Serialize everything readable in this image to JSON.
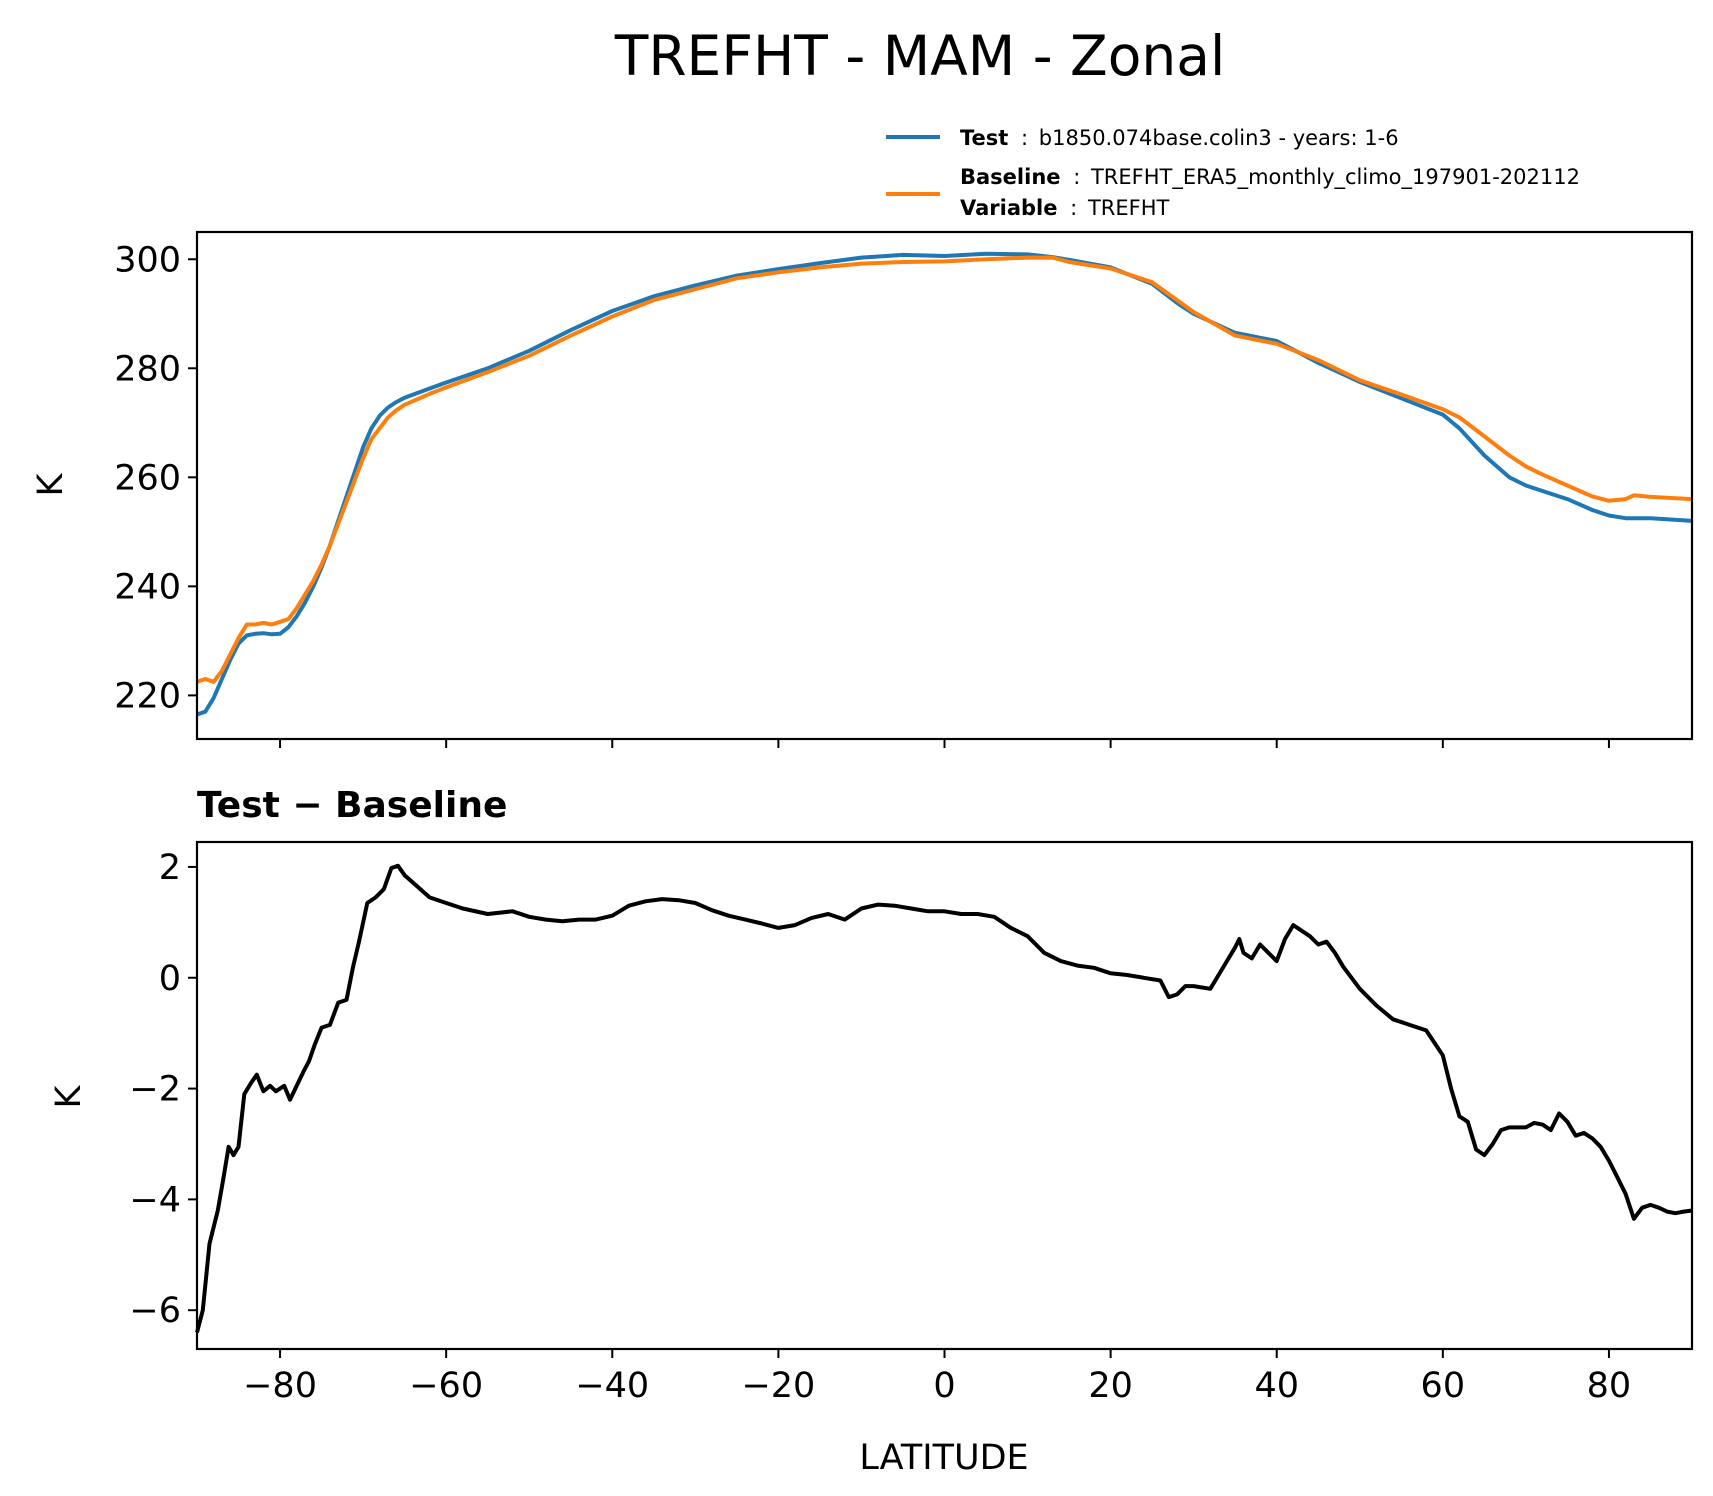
{
  "title": "TREFHT - MAM - Zonal",
  "legend": {
    "test": {
      "label": "Test",
      "value": "b1850.074base.colin3 - years: 1-6"
    },
    "baseline": {
      "label": "Baseline",
      "value": "TREFHT_ERA5_monthly_climo_197901-202112"
    },
    "variable": {
      "label": "Variable",
      "value": "TREFHT"
    },
    "separator": ":"
  },
  "colors": {
    "test": "#1f77b4",
    "baseline": "#ff7f0e",
    "diff": "#000000"
  },
  "chart_data": [
    {
      "type": "line",
      "title": "",
      "xlabel": "",
      "ylabel": "K",
      "xlim": [
        -90,
        90
      ],
      "ylim": [
        212,
        305
      ],
      "yticks": [
        220,
        240,
        260,
        280,
        300
      ],
      "xticks": [
        -80,
        -60,
        -40,
        -20,
        0,
        20,
        40,
        60,
        80
      ],
      "series": [
        {
          "name": "Test",
          "color": "#1f77b4",
          "points": [
            [
              -90,
              216.5
            ],
            [
              -89,
              217
            ],
            [
              -88,
              219.5
            ],
            [
              -87,
              223
            ],
            [
              -86,
              226.5
            ],
            [
              -85,
              229.5
            ],
            [
              -84,
              231
            ],
            [
              -83,
              231.3
            ],
            [
              -82,
              231.4
            ],
            [
              -81,
              231.2
            ],
            [
              -80,
              231.3
            ],
            [
              -79,
              232.5
            ],
            [
              -78,
              234.5
            ],
            [
              -77,
              237
            ],
            [
              -76,
              240
            ],
            [
              -75,
              243.5
            ],
            [
              -74,
              247.5
            ],
            [
              -73,
              252
            ],
            [
              -72,
              256.5
            ],
            [
              -71,
              261
            ],
            [
              -70,
              265.5
            ],
            [
              -69,
              269
            ],
            [
              -68,
              271.3
            ],
            [
              -67,
              272.8
            ],
            [
              -66,
              273.8
            ],
            [
              -65,
              274.6
            ],
            [
              -62,
              276.3
            ],
            [
              -60,
              277.4
            ],
            [
              -55,
              280
            ],
            [
              -50,
              283.2
            ],
            [
              -45,
              287
            ],
            [
              -40,
              290.5
            ],
            [
              -35,
              293.2
            ],
            [
              -30,
              295.2
            ],
            [
              -25,
              297
            ],
            [
              -20,
              298.2
            ],
            [
              -15,
              299.3
            ],
            [
              -10,
              300.3
            ],
            [
              -5,
              300.8
            ],
            [
              0,
              300.6
            ],
            [
              5,
              301
            ],
            [
              10,
              300.9
            ],
            [
              13,
              300.4
            ],
            [
              15,
              299.9
            ],
            [
              20,
              298.5
            ],
            [
              25,
              295.5
            ],
            [
              28,
              292
            ],
            [
              30,
              290
            ],
            [
              35,
              286.5
            ],
            [
              40,
              285
            ],
            [
              45,
              281
            ],
            [
              50,
              277.5
            ],
            [
              55,
              274.5
            ],
            [
              60,
              271.5
            ],
            [
              62,
              269
            ],
            [
              65,
              264
            ],
            [
              68,
              260
            ],
            [
              70,
              258.5
            ],
            [
              72,
              257.5
            ],
            [
              75,
              256
            ],
            [
              78,
              254
            ],
            [
              80,
              253
            ],
            [
              82,
              252.5
            ],
            [
              85,
              252.5
            ],
            [
              90,
              252
            ]
          ]
        },
        {
          "name": "Baseline",
          "color": "#ff7f0e",
          "points": [
            [
              -90,
              222.5
            ],
            [
              -89,
              223
            ],
            [
              -88,
              222.5
            ],
            [
              -87,
              224.5
            ],
            [
              -86,
              227.5
            ],
            [
              -85,
              230.5
            ],
            [
              -84,
              233
            ],
            [
              -83,
              233
            ],
            [
              -82,
              233.3
            ],
            [
              -81,
              233
            ],
            [
              -80,
              233.5
            ],
            [
              -79,
              234
            ],
            [
              -78,
              236
            ],
            [
              -77,
              238.5
            ],
            [
              -76,
              241
            ],
            [
              -75,
              244
            ],
            [
              -74,
              247.5
            ],
            [
              -73,
              251.5
            ],
            [
              -72,
              255.5
            ],
            [
              -71,
              259.5
            ],
            [
              -70,
              263.5
            ],
            [
              -69,
              267
            ],
            [
              -68,
              269
            ],
            [
              -67,
              271
            ],
            [
              -66,
              272.3
            ],
            [
              -65,
              273.3
            ],
            [
              -62,
              275.3
            ],
            [
              -60,
              276.5
            ],
            [
              -55,
              279.3
            ],
            [
              -50,
              282.3
            ],
            [
              -45,
              286
            ],
            [
              -40,
              289.5
            ],
            [
              -35,
              292.5
            ],
            [
              -30,
              294.5
            ],
            [
              -25,
              296.5
            ],
            [
              -20,
              297.6
            ],
            [
              -15,
              298.5
            ],
            [
              -10,
              299.2
            ],
            [
              -5,
              299.5
            ],
            [
              0,
              299.6
            ],
            [
              5,
              300
            ],
            [
              10,
              300.3
            ],
            [
              13,
              300.3
            ],
            [
              15,
              299.5
            ],
            [
              20,
              298.3
            ],
            [
              25,
              295.8
            ],
            [
              28,
              292.5
            ],
            [
              30,
              290.3
            ],
            [
              35,
              286
            ],
            [
              40,
              284.5
            ],
            [
              45,
              281.5
            ],
            [
              50,
              277.8
            ],
            [
              55,
              275.2
            ],
            [
              60,
              272.5
            ],
            [
              62,
              271
            ],
            [
              65,
              267.5
            ],
            [
              68,
              264
            ],
            [
              70,
              262
            ],
            [
              72,
              260.5
            ],
            [
              75,
              258.5
            ],
            [
              78,
              256.5
            ],
            [
              80,
              255.7
            ],
            [
              82,
              256
            ],
            [
              83,
              256.7
            ],
            [
              85,
              256.4
            ],
            [
              90,
              256
            ]
          ]
        }
      ]
    },
    {
      "type": "line",
      "title": "Test − Baseline",
      "xlabel": "LATITUDE",
      "ylabel": "K",
      "xlim": [
        -90,
        90
      ],
      "ylim": [
        -6.7,
        2.45
      ],
      "yticks": [
        -6,
        -4,
        -2,
        0,
        2
      ],
      "yticklabels": [
        "−6",
        "−4",
        "−2",
        "0",
        "2"
      ],
      "xticks": [
        -80,
        -60,
        -40,
        -20,
        0,
        20,
        40,
        60,
        80
      ],
      "xticklabels": [
        "−80",
        "−60",
        "−40",
        "−20",
        "0",
        "20",
        "40",
        "60",
        "80"
      ],
      "series": [
        {
          "name": "Test − Baseline",
          "color": "#000000",
          "points": [
            [
              -90,
              -6.4
            ],
            [
              -89.3,
              -6
            ],
            [
              -88.5,
              -4.8
            ],
            [
              -87.5,
              -4.2
            ],
            [
              -86.8,
              -3.6
            ],
            [
              -86.2,
              -3.05
            ],
            [
              -85.6,
              -3.2
            ],
            [
              -85,
              -3.05
            ],
            [
              -84.3,
              -2.1
            ],
            [
              -83.5,
              -1.9
            ],
            [
              -82.8,
              -1.75
            ],
            [
              -82,
              -2.05
            ],
            [
              -81.2,
              -1.95
            ],
            [
              -80.5,
              -2.05
            ],
            [
              -79.5,
              -1.95
            ],
            [
              -78.8,
              -2.2
            ],
            [
              -78,
              -1.95
            ],
            [
              -77.2,
              -1.7
            ],
            [
              -76.5,
              -1.5
            ],
            [
              -75.8,
              -1.2
            ],
            [
              -75,
              -0.9
            ],
            [
              -74,
              -0.85
            ],
            [
              -73,
              -0.45
            ],
            [
              -72,
              -0.4
            ],
            [
              -71.2,
              0.2
            ],
            [
              -70.5,
              0.65
            ],
            [
              -69.5,
              1.35
            ],
            [
              -68.5,
              1.45
            ],
            [
              -67.5,
              1.6
            ],
            [
              -66.6,
              1.98
            ],
            [
              -65.8,
              2.02
            ],
            [
              -65,
              1.85
            ],
            [
              -63.5,
              1.65
            ],
            [
              -62,
              1.45
            ],
            [
              -60,
              1.35
            ],
            [
              -58,
              1.25
            ],
            [
              -55,
              1.15
            ],
            [
              -52,
              1.2
            ],
            [
              -50,
              1.1
            ],
            [
              -48,
              1.05
            ],
            [
              -46,
              1.02
            ],
            [
              -44,
              1.05
            ],
            [
              -42,
              1.05
            ],
            [
              -40,
              1.12
            ],
            [
              -38,
              1.3
            ],
            [
              -36,
              1.38
            ],
            [
              -34,
              1.42
            ],
            [
              -32,
              1.4
            ],
            [
              -30,
              1.35
            ],
            [
              -28,
              1.22
            ],
            [
              -26,
              1.12
            ],
            [
              -24,
              1.05
            ],
            [
              -22,
              0.98
            ],
            [
              -20,
              0.9
            ],
            [
              -18,
              0.95
            ],
            [
              -16,
              1.08
            ],
            [
              -14,
              1.15
            ],
            [
              -12,
              1.05
            ],
            [
              -10,
              1.25
            ],
            [
              -8,
              1.32
            ],
            [
              -6,
              1.3
            ],
            [
              -4,
              1.25
            ],
            [
              -2,
              1.2
            ],
            [
              0,
              1.2
            ],
            [
              2,
              1.15
            ],
            [
              4,
              1.15
            ],
            [
              6,
              1.1
            ],
            [
              8,
              0.9
            ],
            [
              10,
              0.75
            ],
            [
              12,
              0.45
            ],
            [
              14,
              0.3
            ],
            [
              16,
              0.22
            ],
            [
              18,
              0.18
            ],
            [
              20,
              0.08
            ],
            [
              22,
              0.05
            ],
            [
              24,
              0
            ],
            [
              26,
              -0.05
            ],
            [
              27,
              -0.35
            ],
            [
              28,
              -0.3
            ],
            [
              29,
              -0.15
            ],
            [
              30,
              -0.15
            ],
            [
              32,
              -0.2
            ],
            [
              33,
              0.05
            ],
            [
              34,
              0.3
            ],
            [
              35,
              0.55
            ],
            [
              35.5,
              0.7
            ],
            [
              36,
              0.45
            ],
            [
              37,
              0.35
            ],
            [
              38,
              0.6
            ],
            [
              39,
              0.45
            ],
            [
              40,
              0.3
            ],
            [
              41,
              0.7
            ],
            [
              42,
              0.95
            ],
            [
              43,
              0.85
            ],
            [
              44,
              0.75
            ],
            [
              45,
              0.6
            ],
            [
              46,
              0.65
            ],
            [
              47,
              0.45
            ],
            [
              48,
              0.2
            ],
            [
              50,
              -0.2
            ],
            [
              52,
              -0.5
            ],
            [
              54,
              -0.75
            ],
            [
              56,
              -0.85
            ],
            [
              58,
              -0.95
            ],
            [
              60,
              -1.4
            ],
            [
              61,
              -2
            ],
            [
              62,
              -2.5
            ],
            [
              63,
              -2.6
            ],
            [
              64,
              -3.1
            ],
            [
              65,
              -3.2
            ],
            [
              66,
              -3
            ],
            [
              67,
              -2.75
            ],
            [
              68,
              -2.7
            ],
            [
              70,
              -2.7
            ],
            [
              71,
              -2.62
            ],
            [
              72,
              -2.65
            ],
            [
              73,
              -2.75
            ],
            [
              74,
              -2.45
            ],
            [
              75,
              -2.6
            ],
            [
              76,
              -2.85
            ],
            [
              77,
              -2.8
            ],
            [
              78,
              -2.9
            ],
            [
              79,
              -3.05
            ],
            [
              80,
              -3.3
            ],
            [
              81,
              -3.6
            ],
            [
              82,
              -3.9
            ],
            [
              83,
              -4.35
            ],
            [
              84,
              -4.15
            ],
            [
              85,
              -4.1
            ],
            [
              86,
              -4.15
            ],
            [
              87,
              -4.22
            ],
            [
              88,
              -4.25
            ],
            [
              89,
              -4.22
            ],
            [
              90,
              -4.2
            ]
          ]
        }
      ]
    }
  ]
}
